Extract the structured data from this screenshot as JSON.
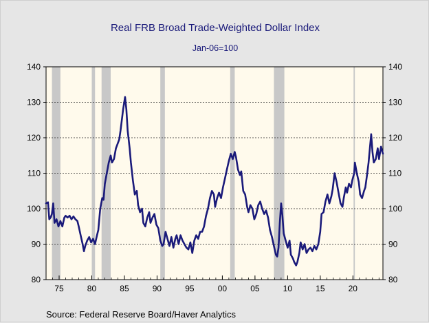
{
  "chart_data": {
    "type": "line",
    "title": "Real FRB Broad Trade-Weighted Dollar Index",
    "subtitle": "Jan-06=100",
    "source": "Source:  Federal Reserve Board/Haver Analytics",
    "xlabel": "",
    "ylabel": "",
    "x_ticks": [
      {
        "year": 1975,
        "label": "75"
      },
      {
        "year": 1980,
        "label": "80"
      },
      {
        "year": 1985,
        "label": "85"
      },
      {
        "year": 1990,
        "label": "90"
      },
      {
        "year": 1995,
        "label": "95"
      },
      {
        "year": 2000,
        "label": "00"
      },
      {
        "year": 2005,
        "label": "05"
      },
      {
        "year": 2010,
        "label": "10"
      },
      {
        "year": 2015,
        "label": "15"
      },
      {
        "year": 2020,
        "label": "20"
      }
    ],
    "xlim": [
      1973.0,
      2024.6
    ],
    "ylim": [
      80,
      140
    ],
    "y_ticks": [
      80,
      90,
      100,
      110,
      120,
      130,
      140
    ],
    "y_tick_labels": [
      "80",
      "90",
      "100",
      "110",
      "120",
      "130",
      "140"
    ],
    "grid": "horizontal dotted",
    "recessions": [
      [
        1973.9,
        1975.2
      ],
      [
        1980.0,
        1980.5
      ],
      [
        1981.5,
        1982.9
      ],
      [
        1990.5,
        1991.2
      ],
      [
        2001.2,
        2001.9
      ],
      [
        2007.9,
        2009.5
      ],
      [
        2020.1,
        2020.3
      ]
    ],
    "series": [
      {
        "values": [
          [
            1973.0,
            101.5
          ],
          [
            1973.3,
            101.8
          ],
          [
            1973.5,
            97.0
          ],
          [
            1973.7,
            97.5
          ],
          [
            1973.9,
            98.5
          ],
          [
            1974.1,
            101.5
          ],
          [
            1974.3,
            96.0
          ],
          [
            1974.6,
            97.0
          ],
          [
            1974.9,
            95.0
          ],
          [
            1975.2,
            96.5
          ],
          [
            1975.5,
            95.0
          ],
          [
            1975.8,
            97.5
          ],
          [
            1976.0,
            98.0
          ],
          [
            1976.3,
            97.5
          ],
          [
            1976.6,
            98.0
          ],
          [
            1976.9,
            97.0
          ],
          [
            1977.2,
            97.8
          ],
          [
            1977.5,
            97.0
          ],
          [
            1977.8,
            96.5
          ],
          [
            1978.0,
            95.0
          ],
          [
            1978.3,
            92.5
          ],
          [
            1978.6,
            90.0
          ],
          [
            1978.8,
            88.0
          ],
          [
            1979.0,
            89.5
          ],
          [
            1979.3,
            91.0
          ],
          [
            1979.6,
            92.0
          ],
          [
            1979.9,
            90.5
          ],
          [
            1980.2,
            91.5
          ],
          [
            1980.5,
            90.0
          ],
          [
            1980.8,
            92.5
          ],
          [
            1981.0,
            94.0
          ],
          [
            1981.3,
            100.0
          ],
          [
            1981.6,
            103.0
          ],
          [
            1981.8,
            102.5
          ],
          [
            1982.0,
            107.0
          ],
          [
            1982.3,
            110.0
          ],
          [
            1982.6,
            113.0
          ],
          [
            1982.9,
            115.0
          ],
          [
            1983.1,
            113.0
          ],
          [
            1983.4,
            114.0
          ],
          [
            1983.7,
            117.0
          ],
          [
            1983.9,
            118.0
          ],
          [
            1984.2,
            119.5
          ],
          [
            1984.4,
            122.0
          ],
          [
            1984.6,
            125.0
          ],
          [
            1984.8,
            128.0
          ],
          [
            1985.1,
            131.5
          ],
          [
            1985.3,
            128.0
          ],
          [
            1985.5,
            122.0
          ],
          [
            1985.8,
            117.0
          ],
          [
            1986.0,
            113.0
          ],
          [
            1986.3,
            108.0
          ],
          [
            1986.6,
            104.0
          ],
          [
            1986.9,
            105.0
          ],
          [
            1987.1,
            101.0
          ],
          [
            1987.4,
            99.0
          ],
          [
            1987.7,
            100.0
          ],
          [
            1987.9,
            96.0
          ],
          [
            1988.2,
            95.0
          ],
          [
            1988.5,
            97.5
          ],
          [
            1988.8,
            99.0
          ],
          [
            1989.0,
            96.0
          ],
          [
            1989.3,
            97.5
          ],
          [
            1989.6,
            98.5
          ],
          [
            1989.9,
            95.5
          ],
          [
            1990.2,
            94.5
          ],
          [
            1990.5,
            91.0
          ],
          [
            1990.8,
            89.5
          ],
          [
            1991.0,
            90.0
          ],
          [
            1991.3,
            93.5
          ],
          [
            1991.6,
            91.5
          ],
          [
            1991.9,
            89.5
          ],
          [
            1992.2,
            92.0
          ],
          [
            1992.5,
            89.0
          ],
          [
            1992.8,
            91.5
          ],
          [
            1993.0,
            92.5
          ],
          [
            1993.3,
            90.0
          ],
          [
            1993.6,
            92.5
          ],
          [
            1993.9,
            91.0
          ],
          [
            1994.2,
            90.0
          ],
          [
            1994.5,
            89.0
          ],
          [
            1994.8,
            88.5
          ],
          [
            1995.1,
            90.5
          ],
          [
            1995.4,
            87.5
          ],
          [
            1995.7,
            91.0
          ],
          [
            1996.0,
            92.5
          ],
          [
            1996.3,
            91.5
          ],
          [
            1996.6,
            93.5
          ],
          [
            1996.9,
            93.5
          ],
          [
            1997.2,
            95.0
          ],
          [
            1997.5,
            98.0
          ],
          [
            1997.8,
            100.0
          ],
          [
            1998.1,
            103.0
          ],
          [
            1998.4,
            105.0
          ],
          [
            1998.7,
            104.0
          ],
          [
            1998.9,
            100.5
          ],
          [
            1999.2,
            103.0
          ],
          [
            1999.5,
            104.5
          ],
          [
            1999.8,
            103.0
          ],
          [
            2000.1,
            106.0
          ],
          [
            2000.4,
            108.5
          ],
          [
            2000.7,
            111.0
          ],
          [
            2001.0,
            113.5
          ],
          [
            2001.3,
            115.5
          ],
          [
            2001.6,
            114.0
          ],
          [
            2001.9,
            116.0
          ],
          [
            2002.1,
            114.5
          ],
          [
            2002.4,
            111.0
          ],
          [
            2002.7,
            109.5
          ],
          [
            2002.9,
            110.5
          ],
          [
            2003.2,
            105.0
          ],
          [
            2003.5,
            104.0
          ],
          [
            2003.8,
            100.5
          ],
          [
            2004.0,
            99.0
          ],
          [
            2004.3,
            101.0
          ],
          [
            2004.6,
            100.0
          ],
          [
            2004.9,
            97.0
          ],
          [
            2005.2,
            98.5
          ],
          [
            2005.5,
            101.0
          ],
          [
            2005.8,
            102.0
          ],
          [
            2006.1,
            100.0
          ],
          [
            2006.4,
            98.5
          ],
          [
            2006.7,
            99.5
          ],
          [
            2007.0,
            97.5
          ],
          [
            2007.3,
            94.0
          ],
          [
            2007.6,
            92.0
          ],
          [
            2007.9,
            89.5
          ],
          [
            2008.2,
            87.0
          ],
          [
            2008.4,
            86.5
          ],
          [
            2008.6,
            89.0
          ],
          [
            2008.8,
            96.0
          ],
          [
            2009.0,
            101.5
          ],
          [
            2009.2,
            98.0
          ],
          [
            2009.4,
            93.0
          ],
          [
            2009.7,
            91.0
          ],
          [
            2010.0,
            89.0
          ],
          [
            2010.3,
            91.0
          ],
          [
            2010.5,
            87.0
          ],
          [
            2010.8,
            86.0
          ],
          [
            2011.0,
            85.0
          ],
          [
            2011.3,
            84.0
          ],
          [
            2011.5,
            85.0
          ],
          [
            2011.8,
            87.5
          ],
          [
            2012.0,
            90.5
          ],
          [
            2012.3,
            88.5
          ],
          [
            2012.6,
            90.0
          ],
          [
            2012.9,
            87.5
          ],
          [
            2013.2,
            88.5
          ],
          [
            2013.5,
            89.0
          ],
          [
            2013.8,
            88.0
          ],
          [
            2014.1,
            89.5
          ],
          [
            2014.4,
            88.5
          ],
          [
            2014.7,
            90.0
          ],
          [
            2015.0,
            93.5
          ],
          [
            2015.2,
            98.5
          ],
          [
            2015.5,
            99.0
          ],
          [
            2015.8,
            102.0
          ],
          [
            2016.1,
            104.0
          ],
          [
            2016.4,
            101.5
          ],
          [
            2016.7,
            103.5
          ],
          [
            2016.9,
            105.5
          ],
          [
            2017.2,
            110.0
          ],
          [
            2017.5,
            107.5
          ],
          [
            2017.8,
            104.5
          ],
          [
            2018.1,
            101.5
          ],
          [
            2018.4,
            100.5
          ],
          [
            2018.6,
            103.0
          ],
          [
            2018.9,
            106.0
          ],
          [
            2019.1,
            104.5
          ],
          [
            2019.4,
            107.0
          ],
          [
            2019.7,
            106.0
          ],
          [
            2019.9,
            108.0
          ],
          [
            2020.2,
            110.0
          ],
          [
            2020.3,
            113.0
          ],
          [
            2020.6,
            110.0
          ],
          [
            2020.9,
            107.5
          ],
          [
            2021.1,
            104.0
          ],
          [
            2021.4,
            103.0
          ],
          [
            2021.7,
            105.0
          ],
          [
            2021.9,
            106.0
          ],
          [
            2022.2,
            110.0
          ],
          [
            2022.4,
            113.0
          ],
          [
            2022.6,
            117.0
          ],
          [
            2022.8,
            121.0
          ],
          [
            2023.0,
            116.0
          ],
          [
            2023.2,
            113.0
          ],
          [
            2023.5,
            114.0
          ],
          [
            2023.8,
            117.0
          ],
          [
            2024.0,
            114.0
          ],
          [
            2024.3,
            117.5
          ],
          [
            2024.6,
            115.5
          ]
        ]
      }
    ]
  },
  "colors": {
    "line": "#1a1a7a",
    "recession": "#c8c8c8",
    "plot_bg": "#fffaec",
    "page_bg": "#e6e6e6",
    "title": "#1a1a7a"
  }
}
